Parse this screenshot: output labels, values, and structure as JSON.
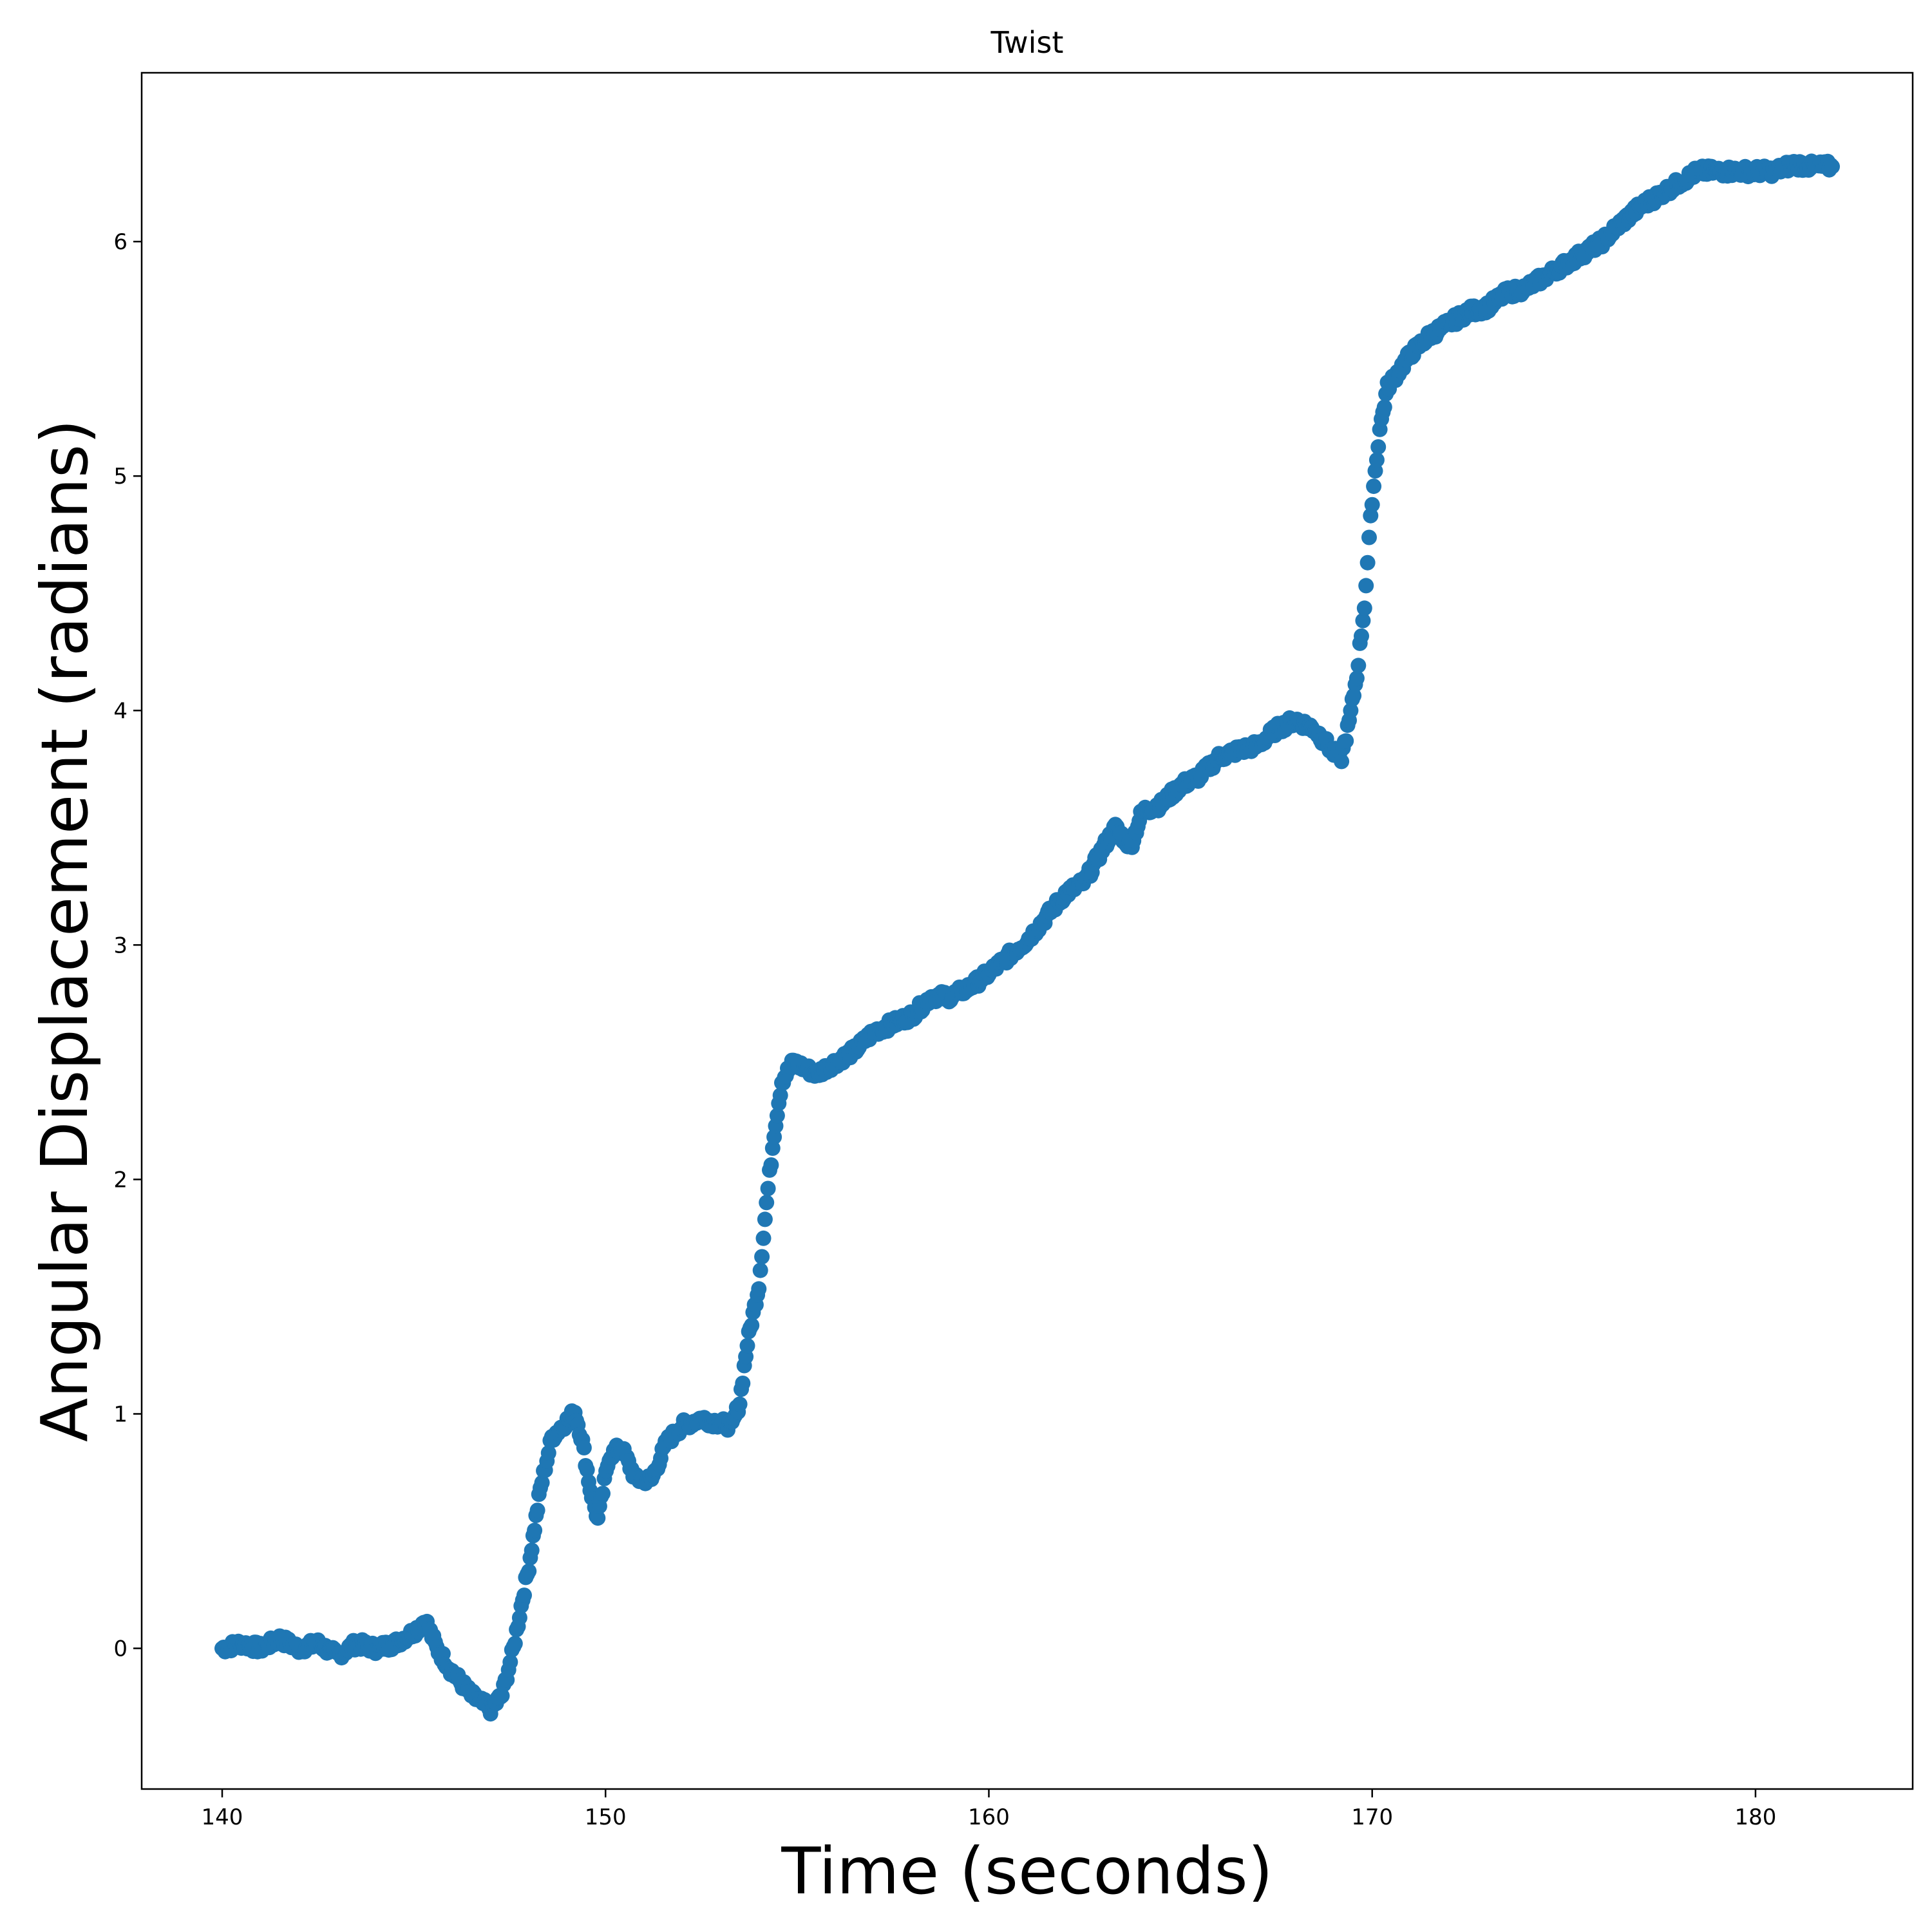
{
  "chart_data": {
    "type": "scatter",
    "title": "Twist",
    "xlabel": "Time (seconds)",
    "ylabel": "Angular Displacement (radians)",
    "xlim": [
      137.9,
      184.1
    ],
    "ylim": [
      -0.6,
      6.72
    ],
    "xticks": [
      140,
      150,
      160,
      170,
      180
    ],
    "yticks": [
      0,
      1,
      2,
      3,
      4,
      5,
      6
    ],
    "grid": false,
    "legend": "none",
    "color": "#1f77b4",
    "series": [
      {
        "anchors": [
          [
            140.0,
            0.0
          ],
          [
            140.5,
            0.02
          ],
          [
            141.0,
            0.0
          ],
          [
            141.5,
            0.04
          ],
          [
            142.0,
            0.0
          ],
          [
            142.5,
            0.02
          ],
          [
            143.0,
            -0.03
          ],
          [
            143.5,
            0.02
          ],
          [
            144.0,
            0.0
          ],
          [
            144.5,
            0.02
          ],
          [
            145.0,
            0.07
          ],
          [
            145.3,
            0.12
          ],
          [
            145.6,
            0.0
          ],
          [
            146.0,
            -0.1
          ],
          [
            146.5,
            -0.2
          ],
          [
            147.0,
            -0.26
          ],
          [
            147.3,
            -0.2
          ],
          [
            147.6,
            0.0
          ],
          [
            147.8,
            0.18
          ],
          [
            148.0,
            0.35
          ],
          [
            148.3,
            0.68
          ],
          [
            148.6,
            0.9
          ],
          [
            149.0,
            0.97
          ],
          [
            149.2,
            1.01
          ],
          [
            149.4,
            0.88
          ],
          [
            149.6,
            0.68
          ],
          [
            149.8,
            0.55
          ],
          [
            150.1,
            0.82
          ],
          [
            150.4,
            0.86
          ],
          [
            150.8,
            0.72
          ],
          [
            151.2,
            0.72
          ],
          [
            151.6,
            0.88
          ],
          [
            152.0,
            0.95
          ],
          [
            152.5,
            0.98
          ],
          [
            153.0,
            0.96
          ],
          [
            153.3,
            0.95
          ],
          [
            153.5,
            1.05
          ],
          [
            153.7,
            1.3
          ],
          [
            154.0,
            1.55
          ],
          [
            154.2,
            1.9
          ],
          [
            154.4,
            2.2
          ],
          [
            154.6,
            2.42
          ],
          [
            154.9,
            2.5
          ],
          [
            155.5,
            2.45
          ],
          [
            156.0,
            2.5
          ],
          [
            156.5,
            2.55
          ],
          [
            157.0,
            2.63
          ],
          [
            158.0,
            2.7
          ],
          [
            158.5,
            2.78
          ],
          [
            159.0,
            2.78
          ],
          [
            159.5,
            2.82
          ],
          [
            160.0,
            2.88
          ],
          [
            160.5,
            2.95
          ],
          [
            161.0,
            3.02
          ],
          [
            161.5,
            3.12
          ],
          [
            162.0,
            3.22
          ],
          [
            162.5,
            3.27
          ],
          [
            163.0,
            3.42
          ],
          [
            163.3,
            3.5
          ],
          [
            163.7,
            3.42
          ],
          [
            164.0,
            3.57
          ],
          [
            164.5,
            3.6
          ],
          [
            165.0,
            3.68
          ],
          [
            165.5,
            3.72
          ],
          [
            166.0,
            3.8
          ],
          [
            166.5,
            3.83
          ],
          [
            167.0,
            3.85
          ],
          [
            167.5,
            3.92
          ],
          [
            168.0,
            3.96
          ],
          [
            168.5,
            3.92
          ],
          [
            169.0,
            3.82
          ],
          [
            169.2,
            3.8
          ],
          [
            169.4,
            3.95
          ],
          [
            169.6,
            4.15
          ],
          [
            169.8,
            4.45
          ],
          [
            170.0,
            4.9
          ],
          [
            170.2,
            5.2
          ],
          [
            170.4,
            5.38
          ],
          [
            170.7,
            5.45
          ],
          [
            171.0,
            5.52
          ],
          [
            171.5,
            5.6
          ],
          [
            172.0,
            5.65
          ],
          [
            172.5,
            5.7
          ],
          [
            173.0,
            5.72
          ],
          [
            173.5,
            5.78
          ],
          [
            174.0,
            5.8
          ],
          [
            174.5,
            5.85
          ],
          [
            175.0,
            5.9
          ],
          [
            175.5,
            5.95
          ],
          [
            176.0,
            6.0
          ],
          [
            176.5,
            6.08
          ],
          [
            177.0,
            6.15
          ],
          [
            177.5,
            6.2
          ],
          [
            178.0,
            6.25
          ],
          [
            178.5,
            6.3
          ],
          [
            179.0,
            6.3
          ],
          [
            179.5,
            6.3
          ],
          [
            180.0,
            6.3
          ],
          [
            180.5,
            6.3
          ],
          [
            181.0,
            6.33
          ],
          [
            181.5,
            6.32
          ],
          [
            182.0,
            6.32
          ]
        ]
      }
    ]
  }
}
